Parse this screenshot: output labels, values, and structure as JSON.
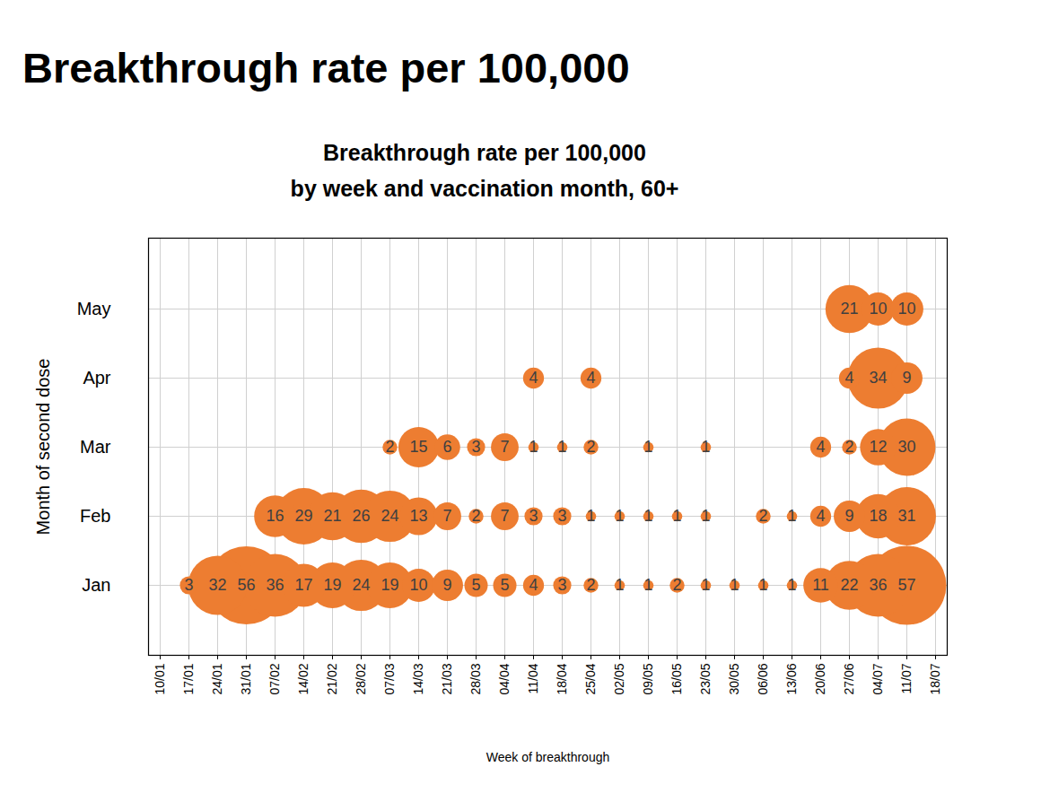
{
  "chart_data": {
    "type": "bubble",
    "title": "Breakthrough rate per 100,000",
    "subtitle": [
      "Breakthrough rate per 100,000",
      "by week and vaccination month, 60+"
    ],
    "x_label": "Week of breakthrough",
    "y_label": "Month of second dose",
    "x": [
      "10/01",
      "17/01",
      "24/01",
      "31/01",
      "07/02",
      "14/02",
      "21/02",
      "28/02",
      "07/03",
      "14/03",
      "21/03",
      "28/03",
      "04/04",
      "11/04",
      "18/04",
      "25/04",
      "02/05",
      "09/05",
      "16/05",
      "23/05",
      "30/05",
      "06/06",
      "13/06",
      "20/06",
      "27/06",
      "04/07",
      "11/07",
      "18/07"
    ],
    "series": [
      {
        "name": "Jan",
        "values": [
          null,
          3,
          32,
          56,
          36,
          17,
          19,
          24,
          19,
          10,
          9,
          5,
          5,
          4,
          3,
          2,
          1,
          1,
          2,
          1,
          1,
          1,
          1,
          11,
          22,
          36,
          57,
          null
        ]
      },
      {
        "name": "Feb",
        "values": [
          null,
          null,
          null,
          null,
          16,
          29,
          21,
          26,
          24,
          13,
          7,
          2,
          7,
          3,
          3,
          1,
          1,
          1,
          1,
          1,
          null,
          2,
          1,
          4,
          9,
          18,
          31,
          null
        ]
      },
      {
        "name": "Mar",
        "values": [
          null,
          null,
          null,
          null,
          null,
          null,
          null,
          null,
          2,
          15,
          6,
          3,
          7,
          1,
          1,
          2,
          null,
          1,
          null,
          1,
          null,
          null,
          null,
          4,
          2,
          12,
          30,
          null
        ]
      },
      {
        "name": "Apr",
        "values": [
          null,
          null,
          null,
          null,
          null,
          null,
          null,
          null,
          null,
          null,
          null,
          null,
          null,
          4,
          null,
          4,
          null,
          null,
          null,
          null,
          null,
          null,
          null,
          null,
          4,
          34,
          9,
          null
        ]
      },
      {
        "name": "May",
        "values": [
          null,
          null,
          null,
          null,
          null,
          null,
          null,
          null,
          null,
          null,
          null,
          null,
          null,
          null,
          null,
          null,
          null,
          null,
          null,
          null,
          null,
          null,
          null,
          null,
          21,
          10,
          10,
          null
        ]
      }
    ],
    "color": "#ED7D31",
    "grid": true,
    "data_labels": true
  }
}
